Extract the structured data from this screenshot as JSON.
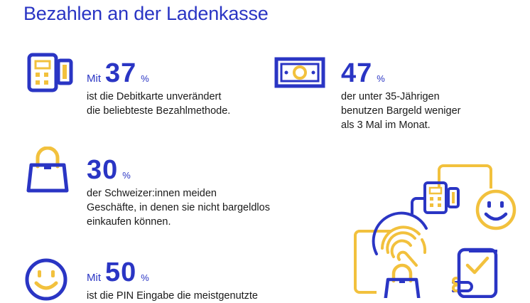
{
  "title": "Bezahlen an der Ladenkasse",
  "colors": {
    "blue": "#2a35c4",
    "yellow": "#f2c13d",
    "text": "#1a1a1a"
  },
  "stats": [
    {
      "icon": "card-terminal-icon",
      "prefix": "Mit",
      "value": "37",
      "unit": "%",
      "lines": [
        "ist die Debitkarte unverändert",
        "die beliebteste Bezahlmethode."
      ]
    },
    {
      "icon": "banknote-icon",
      "prefix": "",
      "value": "47",
      "unit": "%",
      "lines": [
        "der unter 35-Jährigen",
        "benutzen Bargeld weniger",
        "als 3 Mal im Monat."
      ]
    },
    {
      "icon": "shopping-bag-icon",
      "prefix": "",
      "value": "30",
      "unit": "%",
      "lines": [
        "der Schweizer:innen meiden",
        "Geschäfte, in denen sie nicht bargeldlos",
        "einkaufen können."
      ]
    },
    {
      "icon": "smiley-icon",
      "prefix": "Mit",
      "value": "50",
      "unit": "%",
      "lines": [
        "ist die PIN Eingabe die meistgenutzte"
      ]
    }
  ],
  "illustration": {
    "icons": [
      "card-terminal-icon",
      "smiley-icon",
      "fingerprint-icon",
      "smartphone-check-icon",
      "shopping-bag-icon",
      "hand-icon"
    ]
  }
}
